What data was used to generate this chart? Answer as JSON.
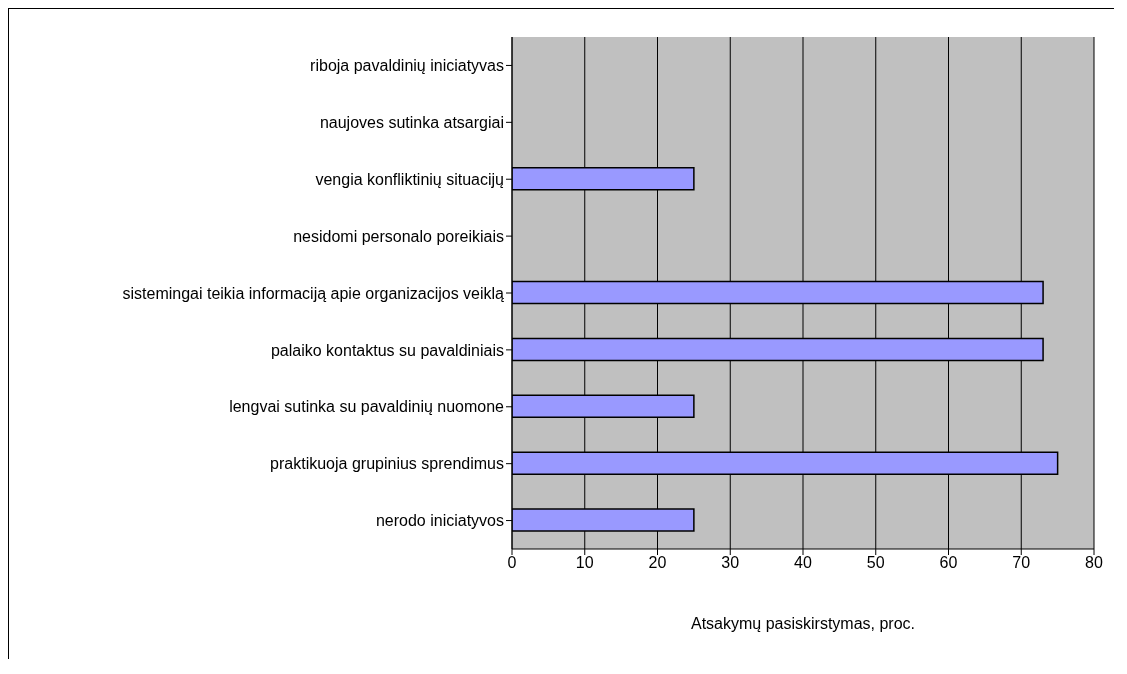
{
  "chart_data": {
    "type": "bar",
    "orientation": "horizontal",
    "xlabel": "Atsakymų pasiskirstymas, proc.",
    "categories": [
      "riboja pavaldinių iniciatyvas",
      "naujoves sutinka atsargiai",
      "vengia konfliktinių situacijų",
      "nesidomi personalo poreikiais",
      "sistemingai teikia informaciją apie organizacijos veiklą",
      "palaiko kontaktus su pavaldiniais",
      "lengvai sutinka su pavaldinių nuomone",
      "praktikuoja grupinius sprendimus",
      "nerodo iniciatyvos"
    ],
    "values": [
      null,
      null,
      25,
      null,
      73,
      73,
      25,
      75,
      25
    ],
    "color": "#9999ff",
    "xlim": [
      0,
      80
    ],
    "xticks": [
      0,
      10,
      20,
      30,
      40,
      50,
      60,
      70,
      80
    ],
    "grid": "x"
  }
}
